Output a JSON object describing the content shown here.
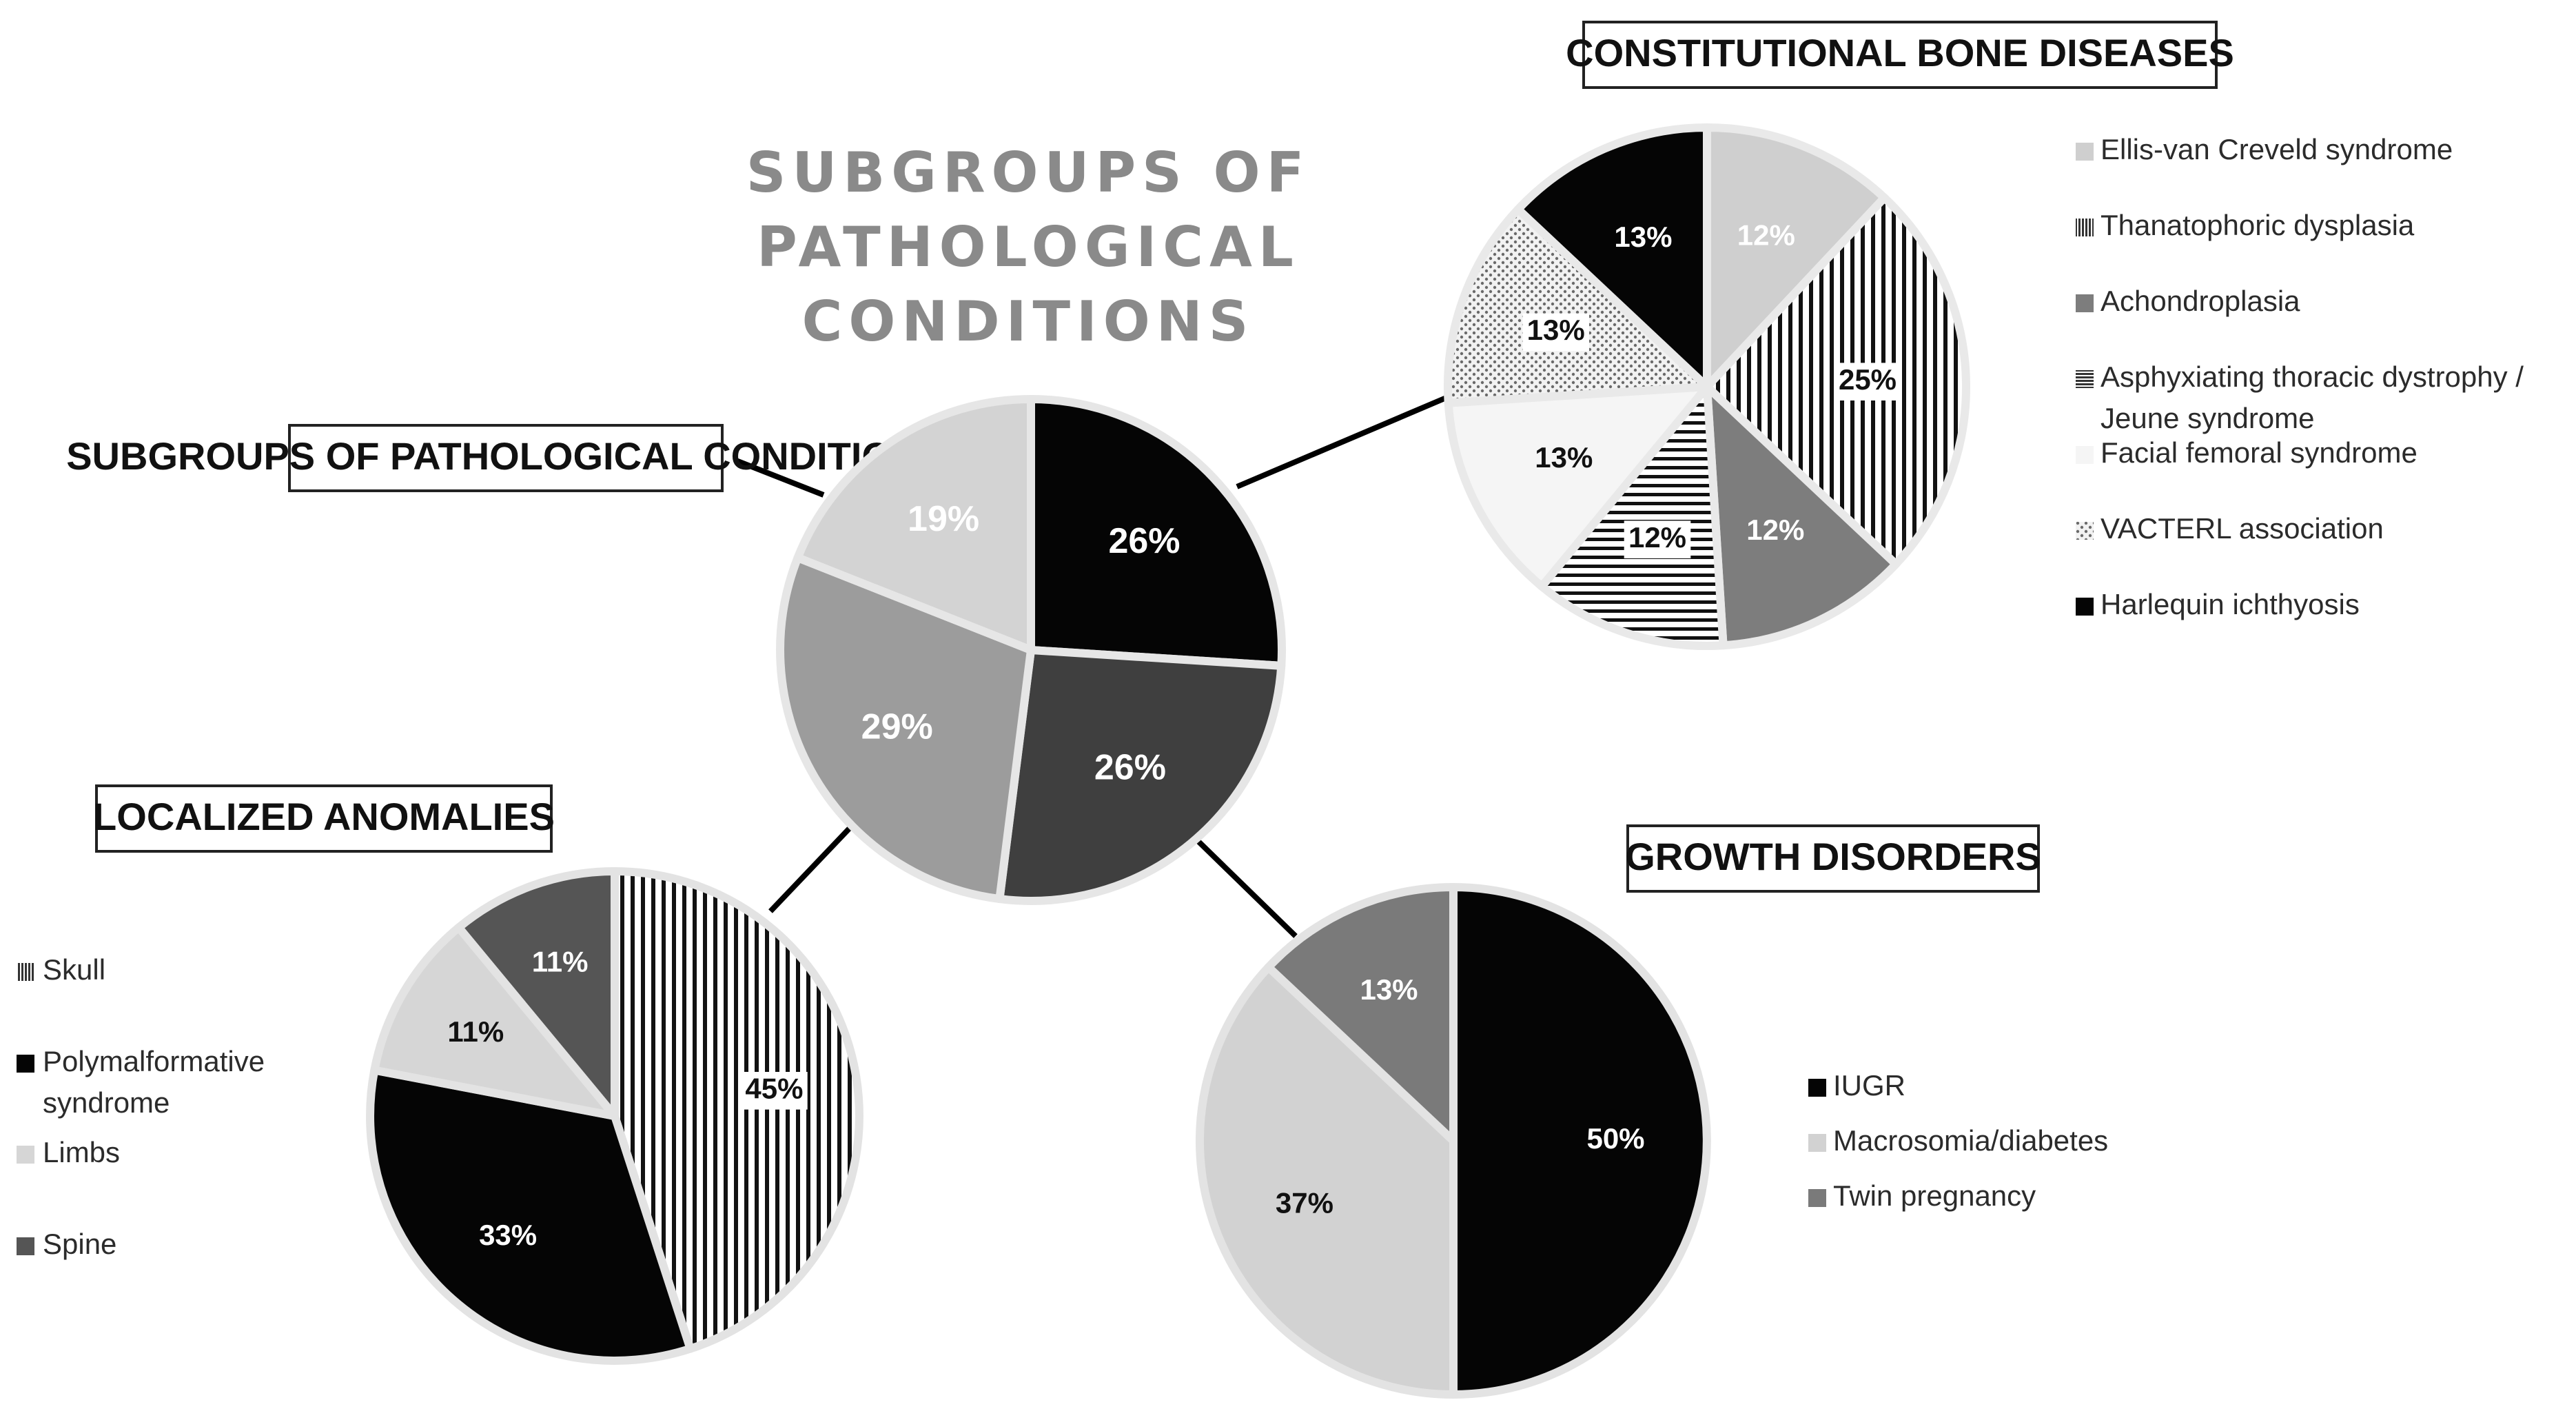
{
  "title_lines": [
    "SUBGROUPS OF",
    "PATHOLOGICAL",
    "CONDITIONS"
  ],
  "chart_data": [
    {
      "type": "pie",
      "title": "SUBGROUPS OF PATHOLOGICAL CONDITIONS",
      "slices": [
        {
          "label": "26%",
          "value": 26,
          "color": "#050505",
          "text_color": "#ffffff"
        },
        {
          "label": "26%",
          "value": 26,
          "color": "#3f3f3f",
          "text_color": "#ffffff"
        },
        {
          "label": "29%",
          "value": 29,
          "color": "#9c9c9c",
          "text_color": "#ffffff"
        },
        {
          "label": "19%",
          "value": 19,
          "color": "#d3d3d3",
          "text_color": "#ffffff"
        }
      ]
    },
    {
      "type": "pie",
      "title": "CONSTITUTIONAL BONE DISEASES",
      "legend_position": "right",
      "slices": [
        {
          "name": "Ellis-van Creveld syndrome",
          "label": "12%",
          "value": 12,
          "color": "#cfcfcf",
          "pattern": "solid",
          "text_color": "#ffffff"
        },
        {
          "name": "Thanatophoric dysplasia",
          "label": "25%",
          "value": 25,
          "color": "#111111",
          "pattern": "vlines",
          "text_color": "#111111"
        },
        {
          "name": "Achondroplasia",
          "label": "12%",
          "value": 12,
          "color": "#7d7d7d",
          "pattern": "solid",
          "text_color": "#ffffff"
        },
        {
          "name": "Asphyxiating thoracic dystrophy / Jeune syndrome",
          "label": "12%",
          "value": 12,
          "color": "#111111",
          "pattern": "hlines",
          "text_color": "#111111"
        },
        {
          "name": "Facial femoral syndrome",
          "label": "13%",
          "value": 13,
          "color": "#f5f5f5",
          "pattern": "solid",
          "text_color": "#111111"
        },
        {
          "name": "VACTERL association",
          "label": "13%",
          "value": 13,
          "color": "#777777",
          "pattern": "dots",
          "text_color": "#111111"
        },
        {
          "name": "Harlequin ichthyosis",
          "label": "13%",
          "value": 13,
          "color": "#050505",
          "pattern": "solid",
          "text_color": "#ffffff"
        }
      ]
    },
    {
      "type": "pie",
      "title": "LOCALIZED ANOMALIES",
      "legend_position": "left",
      "slices": [
        {
          "name": "Skull",
          "label": "45%",
          "value": 45,
          "color": "#444444",
          "pattern": "vlines",
          "text_color": "#111111"
        },
        {
          "name": "Polymalformative syndrome",
          "label": "33%",
          "value": 33,
          "color": "#050505",
          "pattern": "solid",
          "text_color": "#ffffff"
        },
        {
          "name": "Limbs",
          "label": "11%",
          "value": 11,
          "color": "#d6d6d6",
          "pattern": "solid",
          "text_color": "#111111"
        },
        {
          "name": "Spine",
          "label": "11%",
          "value": 11,
          "color": "#555555",
          "pattern": "solid",
          "text_color": "#ffffff"
        }
      ]
    },
    {
      "type": "pie",
      "title": "GROWTH DISORDERS",
      "legend_position": "right",
      "slices": [
        {
          "name": "IUGR",
          "label": "50%",
          "value": 50,
          "color": "#050505",
          "pattern": "solid",
          "text_color": "#ffffff"
        },
        {
          "name": "Macrosomia/diabetes",
          "label": "37%",
          "value": 37,
          "color": "#d2d2d2",
          "pattern": "solid",
          "text_color": "#111111"
        },
        {
          "name": "Twin pregnancy",
          "label": "13%",
          "value": 13,
          "color": "#7a7a7a",
          "pattern": "solid",
          "text_color": "#ffffff"
        }
      ]
    }
  ]
}
